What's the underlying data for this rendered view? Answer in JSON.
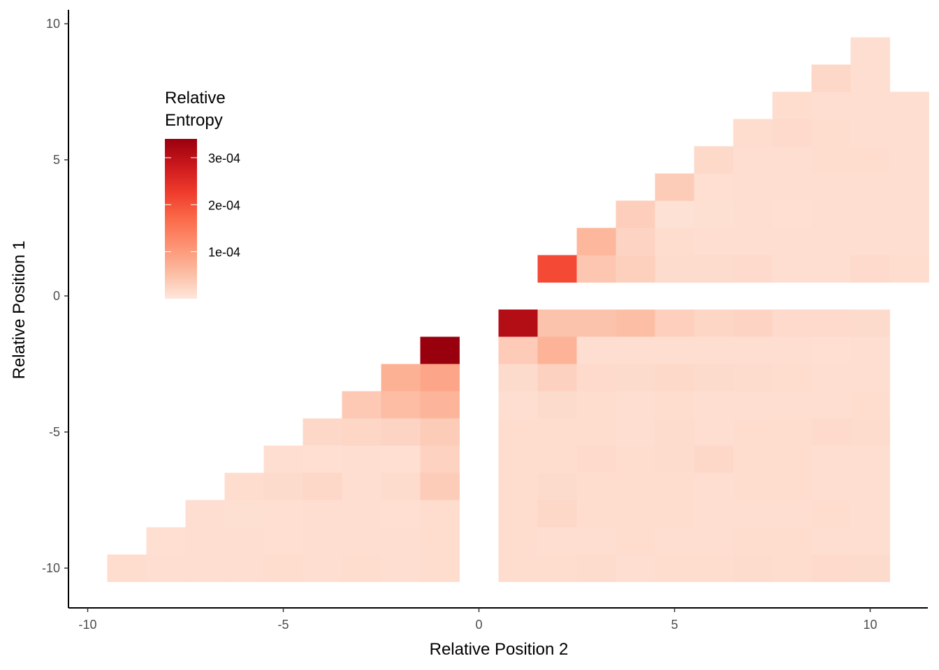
{
  "chart_data": {
    "type": "heatmap",
    "title": "",
    "xlabel": "Relative Position 2",
    "ylabel": "Relative Position 1",
    "xlim": [
      -10.5,
      11.5
    ],
    "ylim": [
      -11.5,
      10.5
    ],
    "x_ticks": [
      -10,
      -5,
      0,
      5,
      10
    ],
    "x_tick_labels": [
      "-10",
      "-5",
      "0",
      "5",
      "10"
    ],
    "y_ticks": [
      10,
      5,
      0,
      -5,
      -10
    ],
    "y_tick_labels": [
      "10",
      "5",
      "0",
      "-5",
      "-10"
    ],
    "grid": false,
    "legend": {
      "title": [
        "Relative",
        "Entropy"
      ],
      "placement": "top-left inside plot",
      "min": 0,
      "max": 0.00034,
      "ticks": [
        0.0003,
        0.0002,
        0.0001
      ],
      "tick_labels": [
        "3e-04",
        "2e-04",
        "1e-04"
      ],
      "colors": [
        "#fee7dd",
        "#fcbba1",
        "#fc9272",
        "#fb6a4a",
        "#ef3b2c",
        "#cb181d",
        "#99000d"
      ]
    },
    "rows_lower": [
      {
        "y": -2,
        "x_start": -1,
        "values": [
          0.00034
        ]
      },
      {
        "y": -3,
        "x_start": -2,
        "values": [
          7.1e-05,
          8.7e-05
        ]
      },
      {
        "y": -4,
        "x_start": -3,
        "values": [
          3.8e-05,
          5.4e-05,
          6.5e-05
        ]
      },
      {
        "y": -5,
        "x_start": -4,
        "values": [
          1.9e-05,
          2.2e-05,
          2.4e-05,
          3.5e-05
        ]
      },
      {
        "y": -6,
        "x_start": -5,
        "values": [
          1.2e-05,
          1e-05,
          1.1e-05,
          1e-05,
          2.7e-05
        ]
      },
      {
        "y": -7,
        "x_start": -6,
        "values": [
          1.4e-05,
          1.6e-05,
          2e-05,
          1.2e-05,
          1.5e-05,
          3.5e-05
        ]
      },
      {
        "y": -8,
        "x_start": -7,
        "values": [
          1.1e-05,
          9e-06,
          1e-05,
          1.1e-05,
          1.2e-05,
          1e-05,
          1.3e-05
        ]
      },
      {
        "y": -9,
        "x_start": -8,
        "values": [
          1e-05,
          1.2e-05,
          1.2e-05,
          1e-05,
          1.1e-05,
          1.2e-05,
          1.1e-05,
          1.4e-05
        ]
      },
      {
        "y": -10,
        "x_start": -9,
        "values": [
          1.3e-05,
          1.1e-05,
          1.2e-05,
          1.2e-05,
          1.4e-05,
          1.2e-05,
          1.3e-05,
          1.2e-05,
          1.3e-05
        ]
      }
    ],
    "rows_upper_left": [
      {
        "y": 1,
        "x_start": 2,
        "values": [
          0.00021,
          4.2e-05,
          2.9e-05,
          1.5e-05,
          1.5e-05,
          1.7e-05,
          1.2e-05,
          1.2e-05,
          1.7e-05,
          1.4e-05
        ]
      },
      {
        "y": 2,
        "x_start": 3,
        "values": [
          6.2e-05,
          2.4e-05,
          1.3e-05,
          1.1e-05,
          1.1e-05,
          1.1e-05,
          1.1e-05,
          1.2e-05,
          1.2e-05
        ]
      },
      {
        "y": 3,
        "x_start": 4,
        "values": [
          3.2e-05,
          8e-06,
          9e-06,
          1.1e-05,
          1e-05,
          1.1e-05,
          1.1e-05,
          1.2e-05
        ]
      },
      {
        "y": 4,
        "x_start": 5,
        "values": [
          3.5e-05,
          1e-05,
          1.1e-05,
          1.2e-05,
          1.2e-05,
          1.2e-05,
          1.2e-05
        ]
      },
      {
        "y": 5,
        "x_start": 6,
        "values": [
          1.8e-05,
          1.1e-05,
          1.1e-05,
          1.4e-05,
          1.3e-05,
          1.2e-05
        ]
      },
      {
        "y": 6,
        "x_start": 7,
        "values": [
          1.3e-05,
          1.7e-05,
          1.3e-05,
          1.2e-05,
          1.2e-05
        ]
      },
      {
        "y": 7,
        "x_start": 8,
        "values": [
          1.3e-05,
          1.2e-05,
          1.2e-05,
          1.2e-05
        ]
      },
      {
        "y": 8,
        "x_start": 9,
        "values": [
          2e-05,
          1.2e-05
        ]
      },
      {
        "y": 9,
        "x_start": 10,
        "values": [
          1.2e-05
        ]
      }
    ],
    "rows_lower_right": [
      {
        "y": -1,
        "x_start": 1,
        "values": [
          0.00031,
          4.6e-05,
          4.6e-05,
          5.2e-05,
          3.1e-05,
          2.2e-05,
          2.4e-05,
          1.7e-05,
          1.7e-05,
          1.6e-05
        ]
      },
      {
        "y": -2,
        "x_start": 1,
        "values": [
          3.6e-05,
          6.8e-05,
          1.1e-05,
          1.1e-05,
          1.2e-05,
          1.2e-05,
          1.1e-05,
          1.1e-05,
          1e-05,
          1.1e-05
        ]
      },
      {
        "y": -3,
        "x_start": 1,
        "values": [
          1.6e-05,
          2.8e-05,
          1.7e-05,
          1.6e-05,
          1.8e-05,
          1.6e-05,
          1.5e-05,
          1.3e-05,
          1.2e-05,
          1.2e-05
        ]
      },
      {
        "y": -4,
        "x_start": 1,
        "values": [
          1.2e-05,
          1.6e-05,
          1.4e-05,
          1.2e-05,
          1.3e-05,
          1.2e-05,
          1.2e-05,
          1.2e-05,
          1.2e-05,
          1.3e-05
        ]
      },
      {
        "y": -5,
        "x_start": 1,
        "values": [
          1.3e-05,
          1.3e-05,
          1.4e-05,
          1.2e-05,
          1.5e-05,
          1.2e-05,
          1.3e-05,
          1.4e-05,
          1.7e-05,
          1.5e-05
        ]
      },
      {
        "y": -6,
        "x_start": 1,
        "values": [
          1.3e-05,
          1.3e-05,
          1.7e-05,
          1.3e-05,
          1.5e-05,
          1.9e-05,
          1.3e-05,
          1.3e-05,
          1.2e-05,
          1.2e-05
        ]
      },
      {
        "y": -7,
        "x_start": 1,
        "values": [
          1.3e-05,
          1.6e-05,
          1.4e-05,
          1.4e-05,
          1.3e-05,
          1.2e-05,
          1.3e-05,
          1.4e-05,
          1.2e-05,
          1.2e-05
        ]
      },
      {
        "y": -8,
        "x_start": 1,
        "values": [
          1.3e-05,
          2.1e-05,
          1.3e-05,
          1.3e-05,
          1.3e-05,
          1.2e-05,
          1.2e-05,
          1.2e-05,
          1.3e-05,
          1.2e-05
        ]
      },
      {
        "y": -9,
        "x_start": 1,
        "values": [
          1.3e-05,
          1.2e-05,
          1.2e-05,
          1.4e-05,
          1.2e-05,
          1.2e-05,
          1.4e-05,
          1.3e-05,
          1.2e-05,
          1.2e-05
        ]
      },
      {
        "y": -10,
        "x_start": 1,
        "values": [
          1.3e-05,
          1.3e-05,
          1.5e-05,
          1.2e-05,
          1.3e-05,
          1.3e-05,
          1.5e-05,
          1.3e-05,
          1.7e-05,
          1.6e-05
        ]
      }
    ]
  }
}
